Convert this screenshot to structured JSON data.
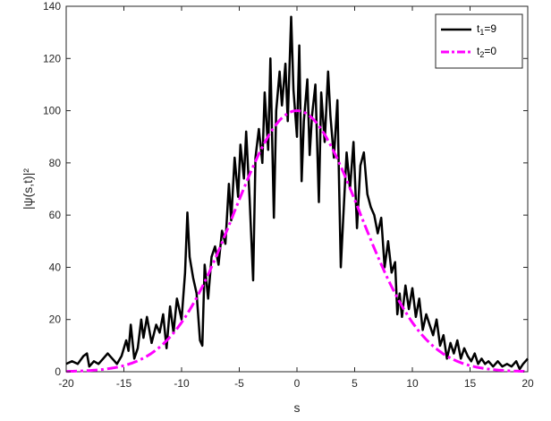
{
  "chart_data": {
    "type": "line",
    "title": "",
    "xlabel": "s",
    "ylabel": "|ψ(s,t)|²",
    "xlim": [
      -20,
      20
    ],
    "ylim": [
      0,
      140
    ],
    "x_ticks": [
      -20,
      -15,
      -10,
      -5,
      0,
      5,
      10,
      15,
      20
    ],
    "y_ticks": [
      0,
      20,
      40,
      60,
      80,
      100,
      120,
      140
    ],
    "grid": false,
    "legend_position": "top-right",
    "series": [
      {
        "name": "t1=9",
        "name_base": "t",
        "name_sub": "1",
        "name_rest": "=9",
        "color": "#000000",
        "style": "solid",
        "points": [
          [
            -20,
            3
          ],
          [
            -19.5,
            4
          ],
          [
            -19,
            3
          ],
          [
            -18.5,
            6
          ],
          [
            -18.2,
            7
          ],
          [
            -18,
            2
          ],
          [
            -17.6,
            4
          ],
          [
            -17.2,
            3
          ],
          [
            -16.8,
            5
          ],
          [
            -16.4,
            7
          ],
          [
            -16,
            5
          ],
          [
            -15.6,
            3
          ],
          [
            -15.2,
            6
          ],
          [
            -14.8,
            12
          ],
          [
            -14.6,
            8
          ],
          [
            -14.4,
            18
          ],
          [
            -14.1,
            5
          ],
          [
            -13.8,
            9
          ],
          [
            -13.5,
            20
          ],
          [
            -13.3,
            13
          ],
          [
            -13,
            21
          ],
          [
            -12.6,
            11
          ],
          [
            -12.2,
            18
          ],
          [
            -11.9,
            15
          ],
          [
            -11.6,
            22
          ],
          [
            -11.3,
            9
          ],
          [
            -11,
            25
          ],
          [
            -10.7,
            15
          ],
          [
            -10.4,
            28
          ],
          [
            -10,
            20
          ],
          [
            -9.7,
            38
          ],
          [
            -9.5,
            61
          ],
          [
            -9.3,
            44
          ],
          [
            -9,
            36
          ],
          [
            -8.7,
            30
          ],
          [
            -8.4,
            12
          ],
          [
            -8.2,
            10
          ],
          [
            -8,
            41
          ],
          [
            -7.7,
            28
          ],
          [
            -7.4,
            44
          ],
          [
            -7.1,
            48
          ],
          [
            -6.8,
            41
          ],
          [
            -6.5,
            54
          ],
          [
            -6.2,
            49
          ],
          [
            -5.9,
            72
          ],
          [
            -5.7,
            58
          ],
          [
            -5.4,
            82
          ],
          [
            -5.1,
            67
          ],
          [
            -4.9,
            87
          ],
          [
            -4.6,
            74
          ],
          [
            -4.4,
            92
          ],
          [
            -4.1,
            66
          ],
          [
            -3.8,
            35
          ],
          [
            -3.6,
            82
          ],
          [
            -3.3,
            93
          ],
          [
            -3,
            80
          ],
          [
            -2.8,
            107
          ],
          [
            -2.5,
            85
          ],
          [
            -2.3,
            120
          ],
          [
            -2,
            59
          ],
          [
            -1.8,
            100
          ],
          [
            -1.5,
            115
          ],
          [
            -1.3,
            102
          ],
          [
            -1,
            118
          ],
          [
            -0.8,
            96
          ],
          [
            -0.5,
            136
          ],
          [
            -0.3,
            108
          ],
          [
            0,
            90
          ],
          [
            0.2,
            125
          ],
          [
            0.4,
            73
          ],
          [
            0.6,
            96
          ],
          [
            0.9,
            112
          ],
          [
            1.1,
            83
          ],
          [
            1.3,
            98
          ],
          [
            1.6,
            110
          ],
          [
            1.9,
            65
          ],
          [
            2.1,
            107
          ],
          [
            2.4,
            88
          ],
          [
            2.7,
            115
          ],
          [
            2.9,
            98
          ],
          [
            3.2,
            82
          ],
          [
            3.5,
            104
          ],
          [
            3.8,
            40
          ],
          [
            4,
            58
          ],
          [
            4.3,
            84
          ],
          [
            4.6,
            70
          ],
          [
            4.9,
            88
          ],
          [
            5.2,
            55
          ],
          [
            5.5,
            79
          ],
          [
            5.8,
            84
          ],
          [
            6.1,
            68
          ],
          [
            6.4,
            63
          ],
          [
            6.7,
            60
          ],
          [
            7,
            53
          ],
          [
            7.3,
            59
          ],
          [
            7.6,
            40
          ],
          [
            7.9,
            50
          ],
          [
            8.2,
            38
          ],
          [
            8.5,
            42
          ],
          [
            8.7,
            22
          ],
          [
            8.9,
            30
          ],
          [
            9.1,
            21
          ],
          [
            9.4,
            33
          ],
          [
            9.7,
            24
          ],
          [
            10,
            32
          ],
          [
            10.3,
            21
          ],
          [
            10.6,
            28
          ],
          [
            10.9,
            16
          ],
          [
            11.2,
            22
          ],
          [
            11.5,
            18
          ],
          [
            11.8,
            14
          ],
          [
            12.1,
            20
          ],
          [
            12.4,
            10
          ],
          [
            12.7,
            14
          ],
          [
            13,
            5
          ],
          [
            13.3,
            11
          ],
          [
            13.6,
            7
          ],
          [
            13.9,
            12
          ],
          [
            14.2,
            5
          ],
          [
            14.5,
            9
          ],
          [
            14.8,
            6
          ],
          [
            15.1,
            4
          ],
          [
            15.4,
            7
          ],
          [
            15.7,
            3
          ],
          [
            16,
            5
          ],
          [
            16.3,
            3
          ],
          [
            16.6,
            4
          ],
          [
            17,
            2
          ],
          [
            17.4,
            4
          ],
          [
            17.8,
            2
          ],
          [
            18.2,
            3
          ],
          [
            18.6,
            2
          ],
          [
            19,
            4
          ],
          [
            19.3,
            1
          ],
          [
            19.6,
            3
          ],
          [
            20,
            5
          ]
        ]
      },
      {
        "name": "t2=0",
        "name_base": "t",
        "name_sub": "2",
        "name_rest": "=0",
        "color": "#ff00ff",
        "style": "dash-dot",
        "function": "100*exp(-s^2/60)"
      }
    ]
  }
}
